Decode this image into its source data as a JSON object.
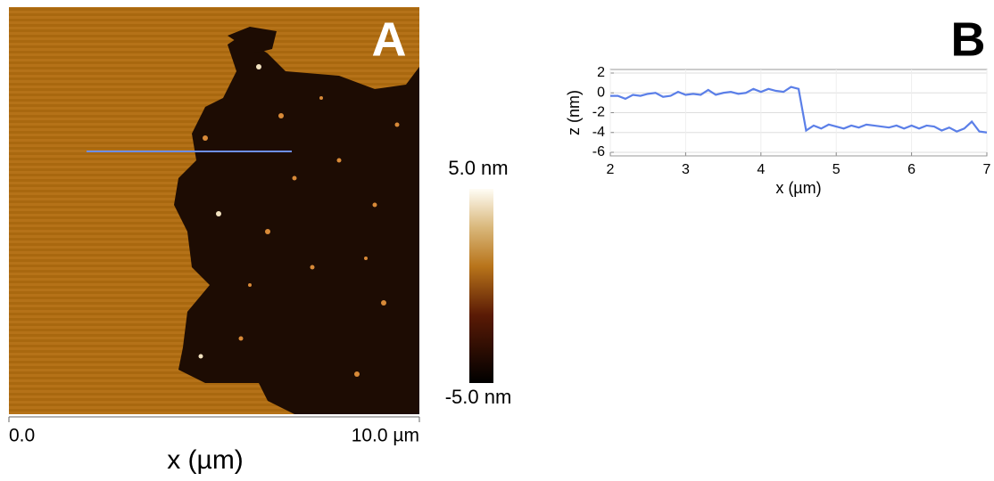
{
  "image_panel": {
    "panel_label": "A",
    "x_start_label": "0.0",
    "x_end_label": "10.0 µm",
    "x_axis_label": "x (µm)",
    "colorbar_max_label": "5.0 nm",
    "colorbar_min_label": "-5.0 nm"
  },
  "chart_data": {
    "type": "line",
    "panel_label": "B",
    "x_label": "x (µm)",
    "y_label": "z (nm)",
    "x": [
      2.0,
      2.1,
      2.2,
      2.3,
      2.4,
      2.5,
      2.6,
      2.7,
      2.8,
      2.9,
      3.0,
      3.1,
      3.2,
      3.3,
      3.4,
      3.5,
      3.6,
      3.7,
      3.8,
      3.9,
      4.0,
      4.1,
      4.2,
      4.3,
      4.4,
      4.5,
      4.6,
      4.7,
      4.8,
      4.9,
      5.0,
      5.1,
      5.2,
      5.3,
      5.4,
      5.5,
      5.6,
      5.7,
      5.8,
      5.9,
      6.0,
      6.1,
      6.2,
      6.3,
      6.4,
      6.5,
      6.6,
      6.7,
      6.8,
      6.9,
      7.0
    ],
    "series": [
      {
        "color": "#5b7fe8",
        "values": [
          -0.3,
          -0.3,
          -0.6,
          -0.2,
          -0.3,
          -0.1,
          0.0,
          -0.4,
          -0.3,
          0.1,
          -0.2,
          -0.1,
          -0.2,
          0.3,
          -0.2,
          0.0,
          0.1,
          -0.1,
          0.0,
          0.4,
          0.1,
          0.4,
          0.2,
          0.1,
          0.6,
          0.4,
          -3.8,
          -3.3,
          -3.6,
          -3.2,
          -3.4,
          -3.6,
          -3.3,
          -3.5,
          -3.2,
          -3.3,
          -3.4,
          -3.5,
          -3.3,
          -3.6,
          -3.3,
          -3.6,
          -3.3,
          -3.4,
          -3.8,
          -3.5,
          -3.9,
          -3.6,
          -2.9,
          -3.9,
          -4.0
        ]
      }
    ],
    "xlim": [
      2,
      7
    ],
    "ylim": [
      -6,
      2
    ],
    "xticks": [
      2,
      3,
      4,
      5,
      6,
      7
    ],
    "yticks": [
      2,
      0,
      -2,
      -4,
      -6
    ],
    "grid": true
  }
}
